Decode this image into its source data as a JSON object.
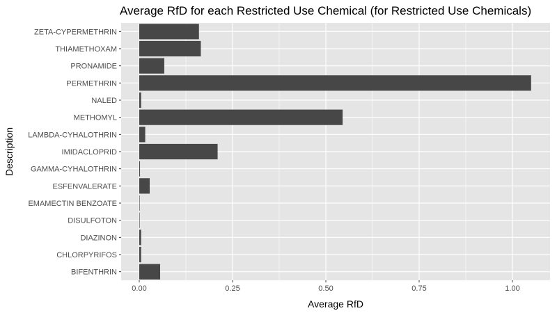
{
  "chart_data": {
    "type": "bar",
    "orientation": "horizontal",
    "title": "Average RfD for each Restricted Use Chemical (for Restricted Use Chemicals)",
    "xlabel": "Average RfD",
    "ylabel": "Description",
    "xlim": [
      -0.05,
      1.1
    ],
    "x_ticks": [
      {
        "value": 0.0,
        "label": "0.00"
      },
      {
        "value": 0.25,
        "label": "0.25"
      },
      {
        "value": 0.5,
        "label": "0.50"
      },
      {
        "value": 0.75,
        "label": "0.75"
      },
      {
        "value": 1.0,
        "label": "1.00"
      }
    ],
    "categories": [
      "ZETA-CYPERMETHRIN",
      "THIAMETHOXAM",
      "PRONAMIDE",
      "PERMETHRIN",
      "NALED",
      "METHOMYL",
      "LAMBDA-CYHALOTHRIN",
      "IMIDACLOPRID",
      "GAMMA-CYHALOTHRIN",
      "ESFENVALERATE",
      "EMAMECTIN BENZOATE",
      "DISULFOTON",
      "DIAZINON",
      "CHLORPYRIFOS",
      "BIFENTHRIN"
    ],
    "values": [
      0.16,
      0.165,
      0.067,
      1.05,
      0.005,
      0.545,
      0.016,
      0.21,
      0.002,
      0.028,
      0.0005,
      0.0002,
      0.005,
      0.005,
      0.056
    ],
    "bar_color": "#474747",
    "panel_background": "#e5e5e5",
    "grid_color": "#ffffff",
    "grid": true,
    "legend": "none"
  }
}
